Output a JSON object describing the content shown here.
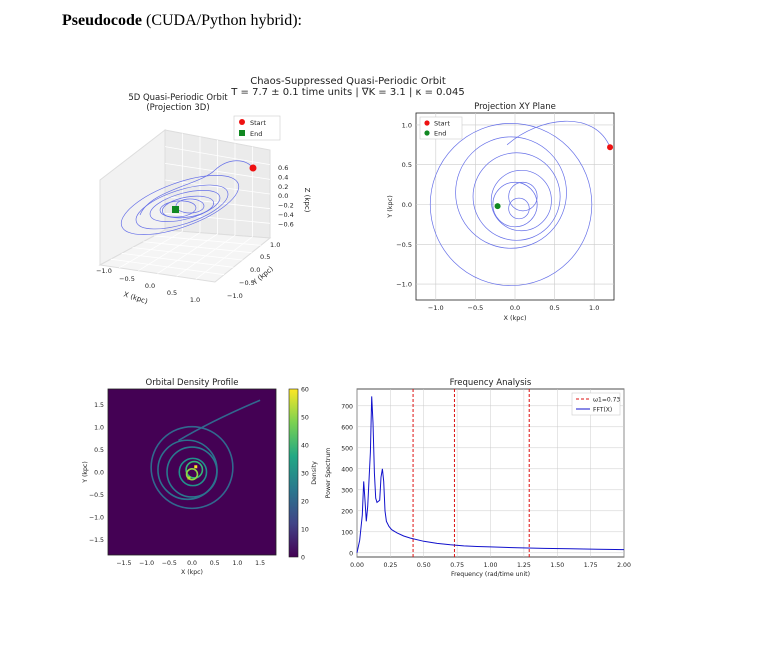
{
  "heading": {
    "bold": "Pseudocode",
    "rest": " (CUDA/Python hybrid):"
  },
  "figure": {
    "suptitle_line1": "Chaos-Suppressed Quasi-Periodic Orbit",
    "suptitle_line2": "T = 7.7 ± 0.1 time units | ∇K = 3.1 | κ = 0.045"
  },
  "colors": {
    "orbit": "#6670e8",
    "start": "#ee1111",
    "end": "#118822",
    "fft": "#1111cc",
    "omega": "#dd1111",
    "grid": "#cccccc"
  },
  "chart_data": [
    {
      "id": "orbit3d",
      "type": "line",
      "title": "5D Quasi-Periodic Orbit\n(Projection 3D)",
      "xlabel": "X (kpc)",
      "ylabel": "Y (kpc)",
      "zlabel": "Z (kpc)",
      "xticks": [
        "−1.0",
        "−0.5",
        "0.0",
        "0.5",
        "1.0"
      ],
      "yticks": [
        "−1.0",
        "−0.5",
        "0.0",
        "0.5",
        "1.0"
      ],
      "zticks": [
        "0.6",
        "0.4",
        "0.2",
        "0.0",
        "−0.2",
        "−0.4",
        "−0.6"
      ],
      "legend": [
        "Start",
        "End"
      ],
      "legend_loc": "top-right"
    },
    {
      "id": "xy",
      "type": "line",
      "title": "Projection XY Plane",
      "xlabel": "X (kpc)",
      "ylabel": "Y (kpc)",
      "xlim": [
        -1.25,
        1.25
      ],
      "ylim": [
        -1.2,
        1.15
      ],
      "xticks": [
        -1.0,
        -0.5,
        0.0,
        0.5,
        1.0
      ],
      "yticks": [
        -1.0,
        -0.5,
        0.0,
        0.5,
        1.0
      ],
      "tick_labels_x": [
        "−1.0",
        "−0.5",
        "0.0",
        "0.5",
        "1.0"
      ],
      "tick_labels_y": [
        "−1.0",
        "−0.5",
        "0.0",
        "0.5",
        "1.0"
      ],
      "grid": true,
      "legend": [
        "Start",
        "End"
      ],
      "legend_loc": "top-left",
      "start": [
        1.2,
        0.72
      ],
      "end": [
        -0.22,
        -0.02
      ],
      "loops": [
        {
          "cx": -0.05,
          "cy": 0.0,
          "r": 1.02
        },
        {
          "cx": -0.05,
          "cy": 0.15,
          "r": 0.7
        },
        {
          "cx": 0.02,
          "cy": 0.1,
          "r": 0.55
        },
        {
          "cx": 0.08,
          "cy": 0.05,
          "r": 0.38
        },
        {
          "cx": 0.0,
          "cy": 0.0,
          "r": 0.28
        },
        {
          "cx": 0.1,
          "cy": 0.1,
          "r": 0.18
        },
        {
          "cx": 0.05,
          "cy": -0.05,
          "r": 0.13
        }
      ]
    },
    {
      "id": "density",
      "type": "heatmap",
      "title": "Orbital Density Profile",
      "xlabel": "X (kpc)",
      "ylabel": "Y (kpc)",
      "xlim": [
        -1.85,
        1.85
      ],
      "ylim": [
        -1.85,
        1.85
      ],
      "xticks": [
        -1.5,
        -1.0,
        -0.5,
        0.0,
        0.5,
        1.0,
        1.5
      ],
      "yticks": [
        -1.5,
        -1.0,
        -0.5,
        0.0,
        0.5,
        1.0,
        1.5
      ],
      "tick_labels_x": [
        "−1.5",
        "−1.0",
        "−0.5",
        "0.0",
        "0.5",
        "1.0",
        "1.5"
      ],
      "tick_labels_y": [
        "−1.5",
        "−1.0",
        "−0.5",
        "0.0",
        "0.5",
        "1.0",
        "1.5"
      ],
      "colorbar_label": "Density",
      "colorbar_range": [
        0,
        60
      ],
      "colorbar_ticks": [
        0,
        10,
        20,
        30,
        40,
        50,
        60
      ],
      "colorbar_tick_labels": [
        "0",
        "10",
        "20",
        "30",
        "40",
        "50",
        "60"
      ]
    },
    {
      "id": "fft",
      "type": "line",
      "title": "Frequency Analysis",
      "xlabel": "Frequency (rad/time unit)",
      "ylabel": "Power Spectrum",
      "xlim": [
        0,
        2.0
      ],
      "ylim": [
        -20,
        780
      ],
      "xticks": [
        0,
        0.25,
        0.5,
        0.75,
        1.0,
        1.25,
        1.5,
        1.75,
        2.0
      ],
      "yticks": [
        0,
        100,
        200,
        300,
        400,
        500,
        600,
        700
      ],
      "tick_labels_x": [
        "0.00",
        "0.25",
        "0.50",
        "0.75",
        "1.00",
        "1.25",
        "1.50",
        "1.75",
        "2.00"
      ],
      "tick_labels_y": [
        "0",
        "100",
        "200",
        "300",
        "400",
        "500",
        "600",
        "700"
      ],
      "grid": true,
      "legend": [
        "ω1=0.73",
        "FFT(X)"
      ],
      "legend_loc": "top-right",
      "vlines": [
        0.42,
        0.73,
        1.29
      ],
      "series": [
        {
          "name": "FFT(X)",
          "x": [
            0.0,
            0.02,
            0.04,
            0.05,
            0.06,
            0.07,
            0.08,
            0.1,
            0.11,
            0.12,
            0.13,
            0.14,
            0.15,
            0.17,
            0.18,
            0.19,
            0.2,
            0.21,
            0.22,
            0.24,
            0.26,
            0.3,
            0.35,
            0.4,
            0.5,
            0.6,
            0.7,
            0.8,
            0.9,
            1.0,
            1.2,
            1.4,
            1.6,
            1.8,
            2.0
          ],
          "y": [
            0,
            60,
            180,
            340,
            250,
            150,
            220,
            480,
            745,
            620,
            380,
            260,
            240,
            250,
            360,
            400,
            340,
            200,
            150,
            125,
            110,
            95,
            80,
            70,
            55,
            45,
            38,
            33,
            30,
            28,
            24,
            21,
            19,
            17,
            15
          ]
        }
      ]
    }
  ]
}
